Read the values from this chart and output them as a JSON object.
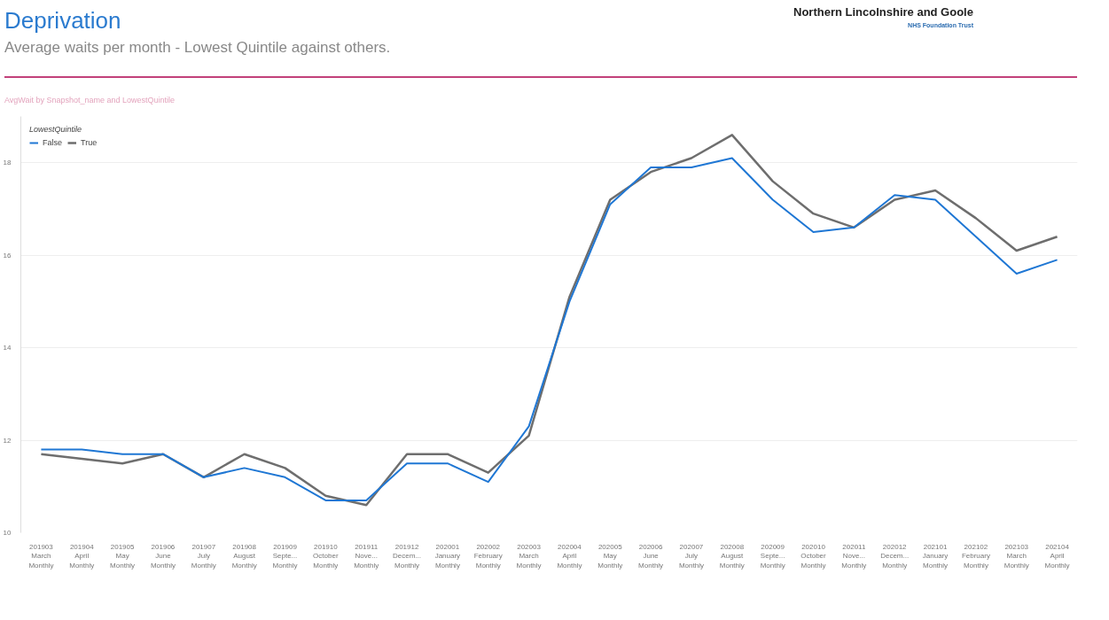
{
  "chart_data": {
    "type": "line",
    "title": "Deprivation",
    "subtitle": "Average waits per month - Lowest Quintile against others.",
    "annotations": [
      "Northern Lincolnshire and Goole",
      "NHS Foundation Trust",
      "AvgWait by Snapshot_name and LowestQuintile"
    ],
    "legend_title": "LowestQuintile",
    "legend": "top left",
    "grid": "y",
    "marker": "none",
    "line_style": "solid",
    "categories": [
      "201903\nMarch\nMonthly",
      "201904\nApril\nMonthly",
      "201905\nMay\nMonthly",
      "201906\nJune\nMonthly",
      "201907\nJuly\nMonthly",
      "201908\nAugust\nMonthly",
      "201909\nSepte...\nMonthly",
      "201910\nOctober\nMonthly",
      "201911\nNove...\nMonthly",
      "201912\nDecem...\nMonthly",
      "202001\nJanuary\nMonthly",
      "202002\nFebruary\nMonthly",
      "202003\nMarch\nMonthly",
      "202004\nApril\nMonthly",
      "202005\nMay\nMonthly",
      "202006\nJune\nMonthly",
      "202007\nJuly\nMonthly",
      "202008\nAugust\nMonthly",
      "202009\nSepte...\nMonthly",
      "202010\nOctober\nMonthly",
      "202011\nNove...\nMonthly",
      "202012\nDecem...\nMonthly",
      "202101\nJanuary\nMonthly",
      "202102\nFebruary\nMonthly",
      "202103\nMarch\nMonthly",
      "202104\nApril\nMonthly"
    ],
    "series": [
      {
        "name": "False",
        "color": "#1f77d4",
        "values": [
          11.8,
          11.8,
          11.7,
          11.7,
          11.2,
          11.4,
          11.2,
          10.7,
          10.7,
          11.5,
          11.5,
          11.1,
          12.3,
          15.0,
          17.1,
          17.9,
          17.9,
          18.1,
          17.2,
          16.5,
          16.6,
          17.3,
          17.2,
          16.4,
          15.6,
          15.9
        ]
      },
      {
        "name": "True",
        "color": "#6e6e6e",
        "values": [
          11.7,
          11.6,
          11.5,
          11.7,
          11.2,
          11.7,
          11.4,
          10.8,
          10.6,
          11.7,
          11.7,
          11.3,
          12.1,
          15.1,
          17.2,
          17.8,
          18.1,
          18.6,
          17.6,
          16.9,
          16.6,
          17.2,
          17.4,
          16.8,
          16.1,
          16.4
        ]
      }
    ],
    "ylim": [
      10,
      19
    ],
    "yticks": [
      10,
      12,
      14,
      16,
      18
    ]
  }
}
